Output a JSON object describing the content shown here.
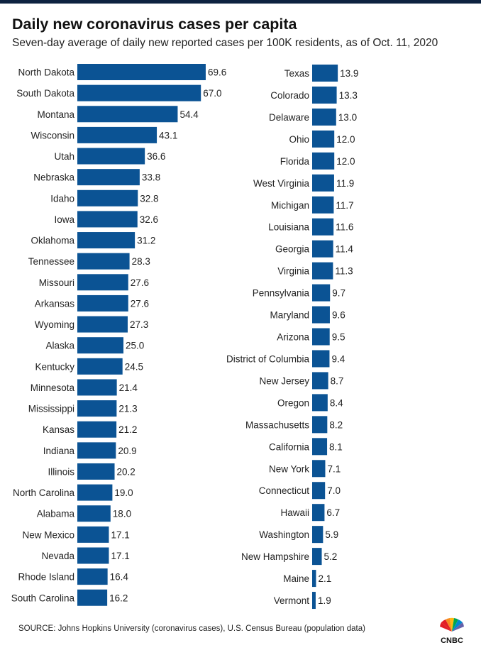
{
  "header": {
    "title": "Daily new coronavirus cases per capita",
    "subtitle": "Seven-day average of daily new reported cases per 100K residents, as of Oct. 11, 2020"
  },
  "chart_data": [
    {
      "type": "bar",
      "orientation": "horizontal",
      "categories": [
        "North Dakota",
        "South Dakota",
        "Montana",
        "Wisconsin",
        "Utah",
        "Nebraska",
        "Idaho",
        "Iowa",
        "Oklahoma",
        "Tennessee",
        "Missouri",
        "Arkansas",
        "Wyoming",
        "Alaska",
        "Kentucky",
        "Minnesota",
        "Mississippi",
        "Kansas",
        "Indiana",
        "Illinois",
        "North Carolina",
        "Alabama",
        "New Mexico",
        "Nevada",
        "Rhode Island",
        "South Carolina"
      ],
      "values": [
        69.6,
        67.0,
        54.4,
        43.1,
        36.6,
        33.8,
        32.8,
        32.6,
        31.2,
        28.3,
        27.6,
        27.6,
        27.3,
        25.0,
        24.5,
        21.4,
        21.3,
        21.2,
        20.9,
        20.2,
        19.0,
        18.0,
        17.1,
        17.1,
        16.4,
        16.2
      ],
      "value_labels": [
        "69.6",
        "67.0",
        "54.4",
        "43.1",
        "36.6",
        "33.8",
        "32.8",
        "32.6",
        "31.2",
        "28.3",
        "27.6",
        "27.6",
        "27.3",
        "25.0",
        "24.5",
        "21.4",
        "21.3",
        "21.2",
        "20.9",
        "20.2",
        "19.0",
        "18.0",
        "17.1",
        "17.1",
        "16.4",
        "16.2"
      ],
      "color": "#0b5394"
    },
    {
      "type": "bar",
      "orientation": "horizontal",
      "categories": [
        "Texas",
        "Colorado",
        "Delaware",
        "Ohio",
        "Florida",
        "West Virginia",
        "Michigan",
        "Louisiana",
        "Georgia",
        "Virginia",
        "Pennsylvania",
        "Maryland",
        "Arizona",
        "District of Columbia",
        "New Jersey",
        "Oregon",
        "Massachusetts",
        "California",
        "New York",
        "Connecticut",
        "Hawaii",
        "Washington",
        "New Hampshire",
        "Maine",
        "Vermont"
      ],
      "values": [
        13.9,
        13.3,
        13.0,
        12.0,
        12.0,
        11.9,
        11.7,
        11.6,
        11.4,
        11.3,
        9.7,
        9.6,
        9.5,
        9.4,
        8.7,
        8.4,
        8.2,
        8.1,
        7.1,
        7.0,
        6.7,
        5.9,
        5.2,
        2.1,
        1.9
      ],
      "value_labels": [
        "13.9",
        "13.3",
        "13.0",
        "12.0",
        "12.0",
        "11.9",
        "11.7",
        "11.6",
        "11.4",
        "11.3",
        "9.7",
        "9.6",
        "9.5",
        "9.4",
        "8.7",
        "8.4",
        "8.2",
        "8.1",
        "7.1",
        "7.0",
        "6.7",
        "5.9",
        "5.2",
        "2.1",
        "1.9"
      ],
      "color": "#0b5394"
    }
  ],
  "footer": {
    "source": "SOURCE: Johns Hopkins University (coronavirus cases), U.S. Census Bureau (population data)",
    "logo_text": "CNBC"
  }
}
